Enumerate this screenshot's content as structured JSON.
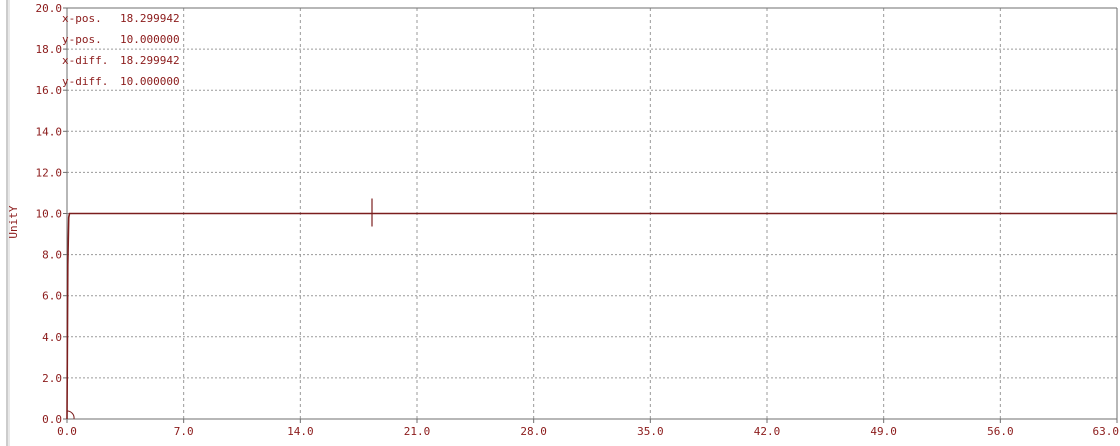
{
  "chart_data": {
    "type": "line",
    "ylabel": "UnitY",
    "xlabel": "",
    "title": "",
    "xlim": [
      0,
      63
    ],
    "ylim": [
      0,
      20
    ],
    "x_ticks": [
      "0.0",
      "7.0",
      "14.0",
      "21.0",
      "28.0",
      "35.0",
      "42.0",
      "49.0",
      "56.0",
      "63.0"
    ],
    "y_ticks": [
      "20.0",
      "18.0",
      "16.0",
      "14.0",
      "12.0",
      "10.0",
      "8.0",
      "6.0",
      "4.0",
      "2.0",
      "0.0"
    ],
    "grid": true,
    "series": [
      {
        "x": [
          0,
          0.05,
          0.1,
          0.15,
          63
        ],
        "y": [
          0,
          7.5,
          9.8,
          10,
          10
        ],
        "color": "#7b1e1e"
      }
    ],
    "cursor": {
      "x": 18.299942,
      "y": 10.0
    },
    "readouts": [
      {
        "label": "x-pos.",
        "value": "18.299942"
      },
      {
        "label": "y-pos.",
        "value": "10.000000"
      },
      {
        "label": "x-diff.",
        "value": "18.299942"
      },
      {
        "label": "y-diff.",
        "value": "10.000000"
      }
    ]
  },
  "colors": {
    "line": "#7b1e1e",
    "text": "#8b1a1a",
    "grid": "#9a9a9a",
    "frame": "#6f6f6f"
  }
}
